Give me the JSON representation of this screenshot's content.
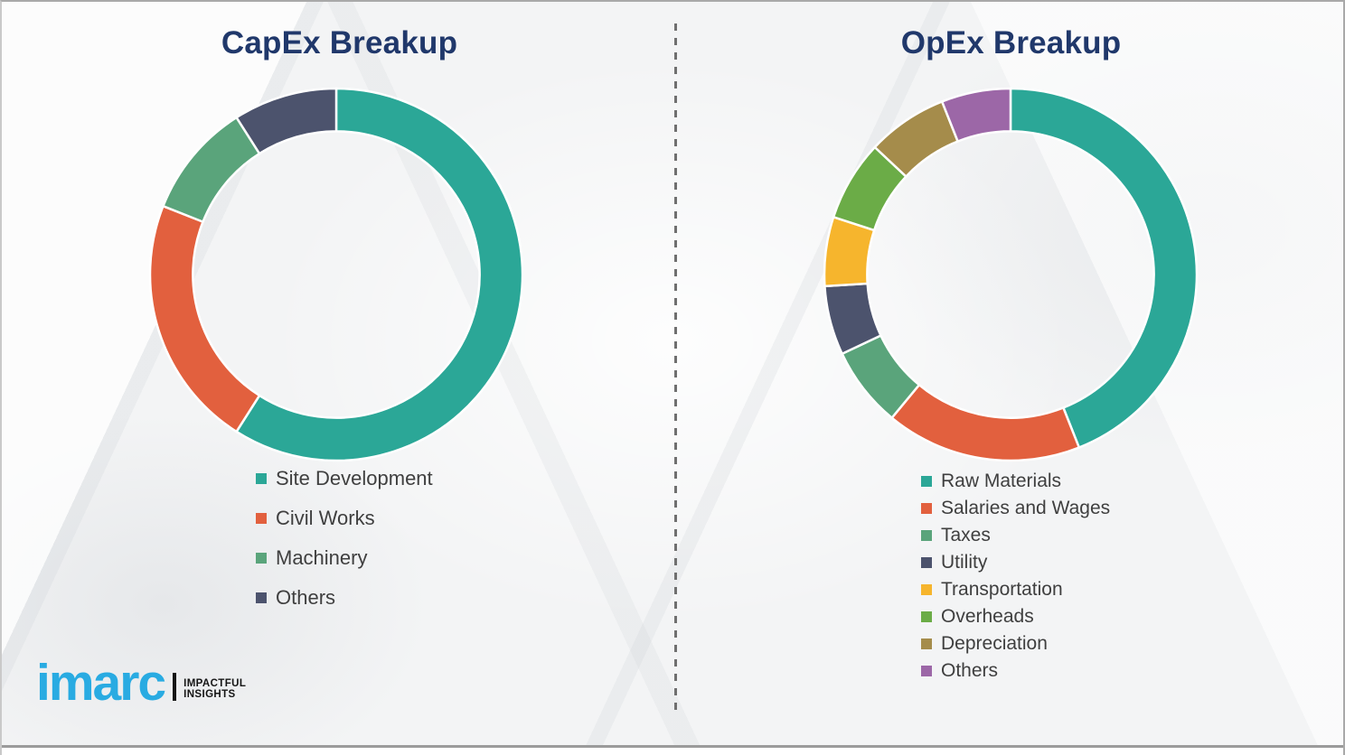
{
  "page": {
    "background_color": "#f3f4f5",
    "frame_border_color": "#a9a9a9",
    "divider_style": "vertical dashed gray line",
    "bottom_rule_color": "#9b9b9b"
  },
  "chart_data": [
    {
      "id": "capex",
      "type": "pie",
      "subtype": "donut",
      "title": "CapEx Breakup",
      "title_color": "#20386b",
      "labels": [
        "Site Development",
        "Civil Works",
        "Machinery",
        "Others"
      ],
      "values": [
        59,
        22,
        10,
        9
      ],
      "values_unit": "percent (estimated from arc angles; no numeric labels shown)",
      "colors": [
        "#2ba797",
        "#e2603e",
        "#5aa47b",
        "#4c536d"
      ],
      "start_angle_deg": 0,
      "direction": "clockwise",
      "inner_radius_ratio": 0.77,
      "segment_gap_color": "#ffffff",
      "legend_position": "below-left",
      "data_labels_shown": false
    },
    {
      "id": "opex",
      "type": "pie",
      "subtype": "donut",
      "title": "OpEx Breakup",
      "title_color": "#20386b",
      "labels": [
        "Raw Materials",
        "Salaries and Wages",
        "Taxes",
        "Utility",
        "Transportation",
        "Overheads",
        "Depreciation",
        "Others"
      ],
      "values": [
        44,
        17,
        7,
        6,
        6,
        7,
        7,
        6
      ],
      "values_unit": "percent (estimated from arc angles; no numeric labels shown)",
      "colors": [
        "#2ba797",
        "#e2603e",
        "#5aa47b",
        "#4c536d",
        "#f6b52d",
        "#6bac47",
        "#a58c4b",
        "#9c67a7"
      ],
      "start_angle_deg": 0,
      "direction": "clockwise",
      "inner_radius_ratio": 0.77,
      "segment_gap_color": "#ffffff",
      "legend_position": "below-left",
      "data_labels_shown": false
    }
  ],
  "logo": {
    "brand": "imarc",
    "brand_color": "#29abe2",
    "tagline_line1": "IMPACTFUL",
    "tagline_line2": "INSIGHTS",
    "tagline_color": "#151515"
  }
}
